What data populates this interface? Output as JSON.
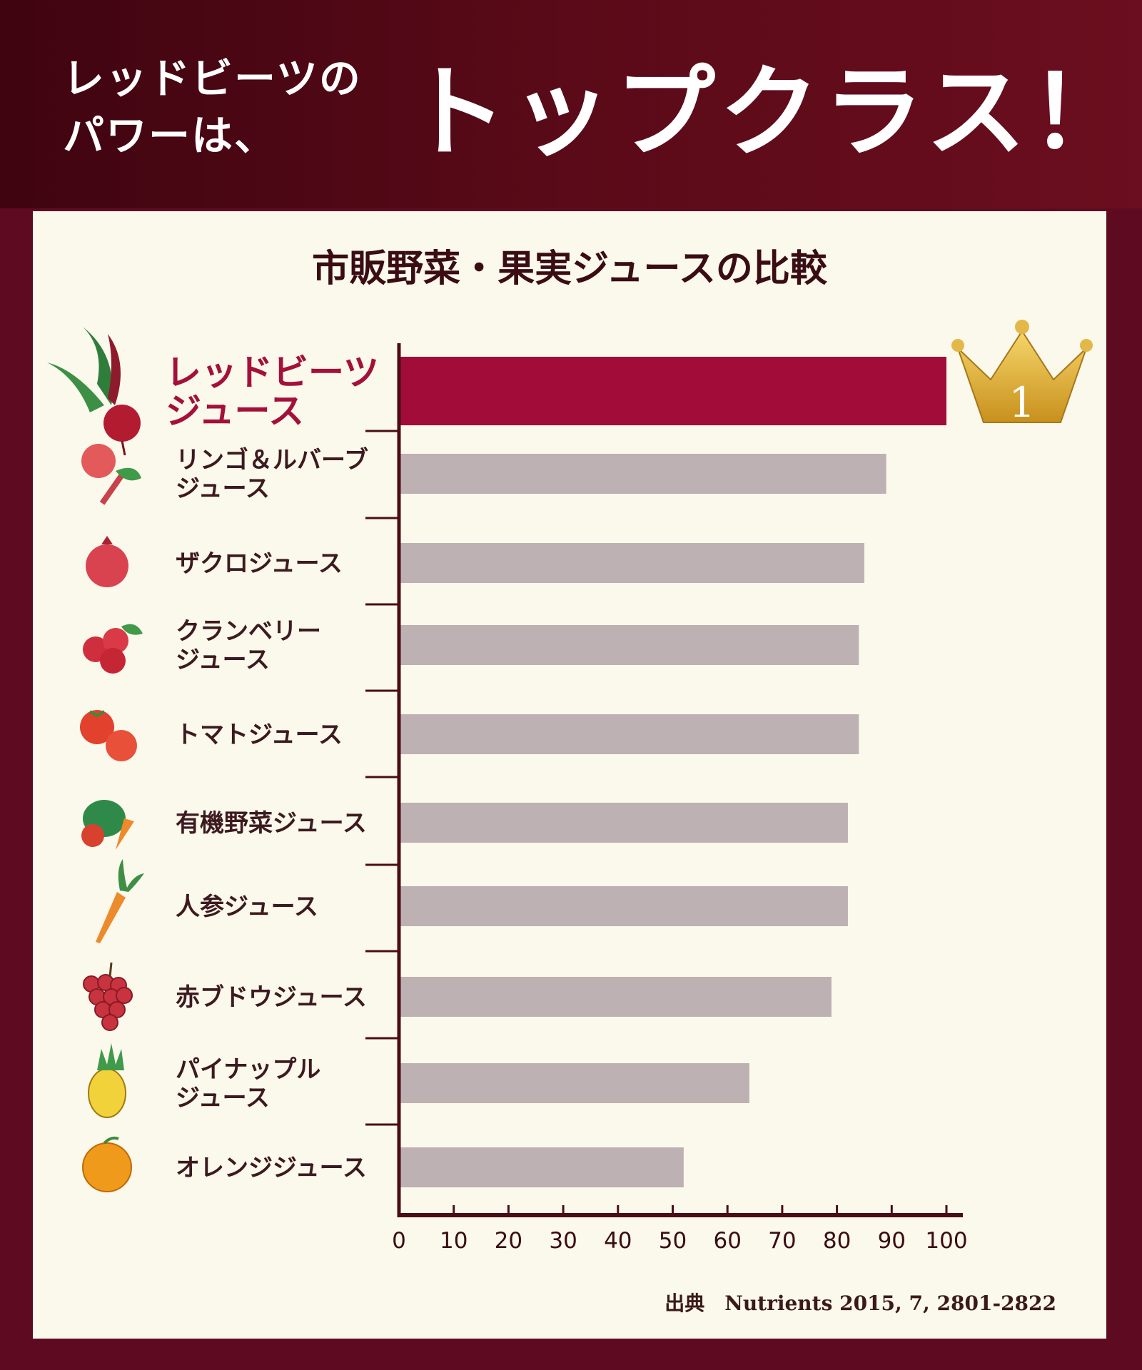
{
  "header": {
    "small_text": "レッドビーツの\nパワーは、",
    "big_text": "トップクラス！"
  },
  "colors": {
    "highlight_bar": "#a10d38",
    "other_bar": "#bdb1b3",
    "axis": "#4a0d16",
    "background_panel": "#fbf8ec",
    "header_bg": "#4d0712",
    "crown": "#e0b23c"
  },
  "chart_data": {
    "type": "bar",
    "orientation": "horizontal",
    "title": "市販野菜・果実ジュースの比較",
    "categories": [
      "レッドビーツジュース",
      "リンゴ＆ルバーブジュース",
      "ザクロジュース",
      "クランベリージュース",
      "トマトジュース",
      "有機野菜ジュース",
      "人参ジュース",
      "赤ブドウジュース",
      "パイナップルジュース",
      "オレンジジュース"
    ],
    "label_lines": [
      [
        "レッドビーツ",
        "ジュース"
      ],
      [
        "リンゴ＆ルバーブ",
        "ジュース"
      ],
      [
        "ザクロジュース"
      ],
      [
        "クランベリー",
        "ジュース"
      ],
      [
        "トマトジュース"
      ],
      [
        "有機野菜ジュース"
      ],
      [
        "人参ジュース"
      ],
      [
        "赤ブドウジュース"
      ],
      [
        "パイナップル",
        "ジュース"
      ],
      [
        "オレンジジュース"
      ]
    ],
    "icons": [
      "red-beet-icon",
      "apple-rhubarb-icon",
      "pomegranate-icon",
      "cranberry-icon",
      "tomato-icon",
      "vegetables-icon",
      "carrot-icon",
      "red-grape-icon",
      "pineapple-icon",
      "orange-icon"
    ],
    "values": [
      100,
      89,
      85,
      84,
      84,
      82,
      82,
      79,
      64,
      52
    ],
    "highlight_index": 0,
    "xlim": [
      0,
      100
    ],
    "xticks": [
      0,
      10,
      20,
      30,
      40,
      50,
      60,
      70,
      80,
      90,
      100
    ],
    "xlabel": "",
    "ylabel": "",
    "rank_badge": "1",
    "source": "出典　Nutrients 2015, 7, 2801-2822"
  }
}
